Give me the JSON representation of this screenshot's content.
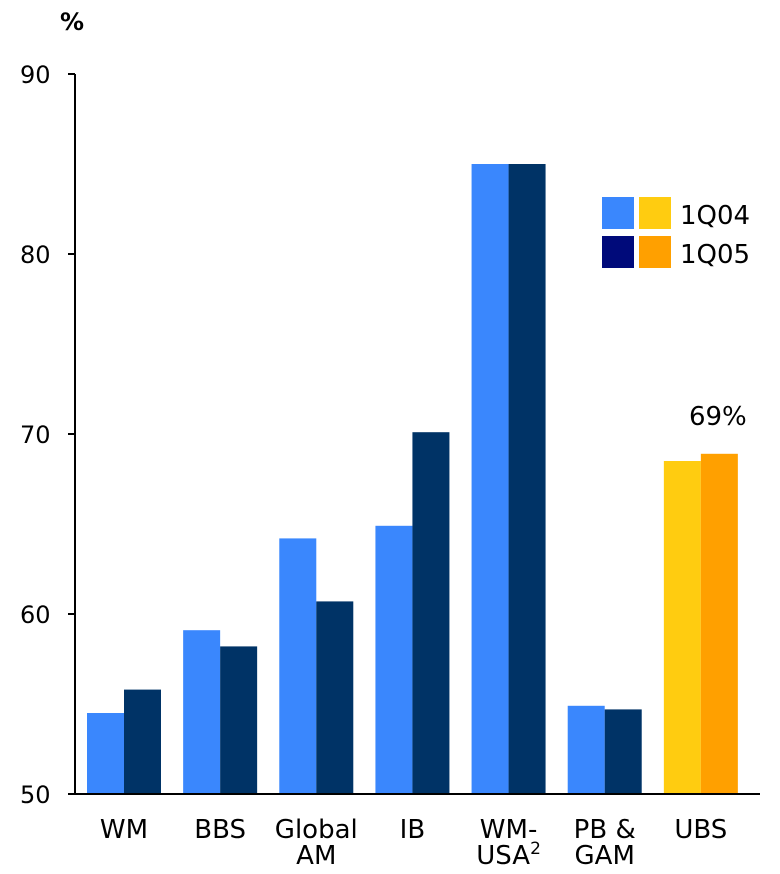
{
  "chart_data": {
    "type": "bar",
    "unit_label": "%",
    "categories": [
      {
        "lines": [
          "WM"
        ],
        "sup": ""
      },
      {
        "lines": [
          "BBS"
        ],
        "sup": ""
      },
      {
        "lines": [
          "Global",
          "AM"
        ],
        "sup": ""
      },
      {
        "lines": [
          "IB"
        ],
        "sup": ""
      },
      {
        "lines": [
          "WM-",
          "USA"
        ],
        "sup": "2"
      },
      {
        "lines": [
          "PB &",
          "GAM"
        ],
        "sup": ""
      },
      {
        "lines": [
          "UBS"
        ],
        "sup": ""
      }
    ],
    "series": [
      {
        "name": "1Q04",
        "values": [
          54.5,
          59.1,
          64.2,
          64.9,
          85.0,
          54.9,
          68.5
        ]
      },
      {
        "name": "1Q05",
        "values": [
          55.8,
          58.2,
          60.7,
          70.1,
          85.0,
          54.7,
          68.9
        ]
      }
    ],
    "ylim": [
      50,
      90
    ],
    "yticks": [
      50,
      60,
      70,
      80,
      90
    ],
    "colors": {
      "1Q04": "#3a87fd",
      "1Q05": "#003366",
      "1Q04_highlight": "#ffcc10",
      "1Q05_highlight": "#ffa000",
      "legend_1Q04": [
        "#3a87fd",
        "#ffcc10"
      ],
      "legend_1Q05": [
        "#000a7a",
        "#ffa000"
      ]
    },
    "highlight_category_index": 6,
    "annotation": {
      "text": "69%",
      "category_index": 6
    },
    "legend_position": "top-right",
    "grid": false
  }
}
